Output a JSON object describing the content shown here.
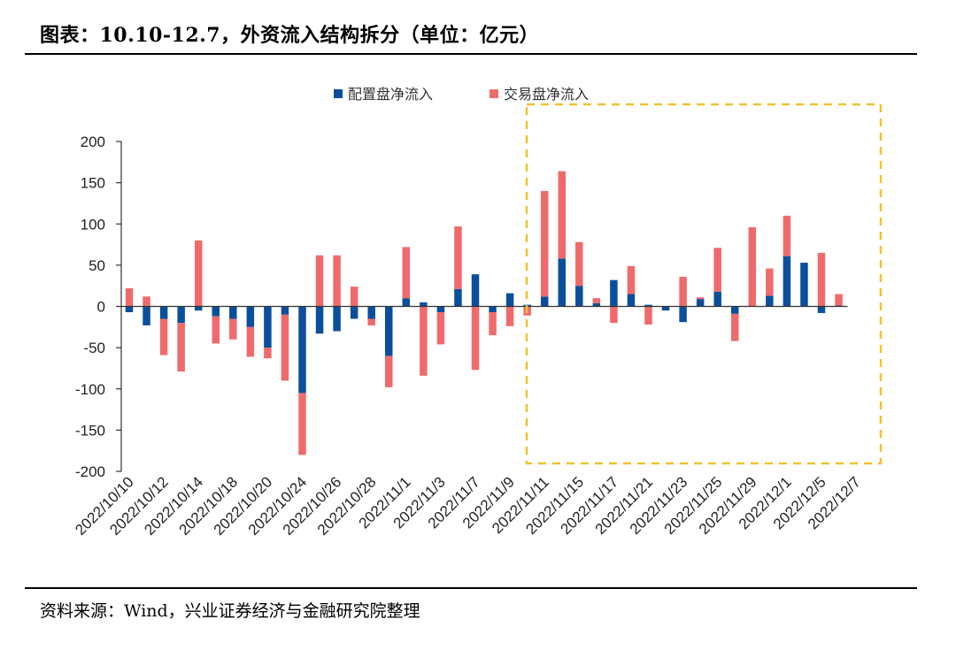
{
  "title": "图表：10.10-12.7，外资流入结构拆分（单位：亿元）",
  "source": "资料来源：Wind，兴业证券经济与金融研究院整理",
  "colors": {
    "allocation": "#0b4f9c",
    "trading": "#ef6b6b",
    "highlight": "#f2c12e"
  },
  "chart_data": {
    "type": "bar",
    "stacked": true,
    "legend_position": "top",
    "ylim": [
      -200,
      200
    ],
    "yticks": [
      200,
      150,
      100,
      50,
      0,
      -50,
      -100,
      -150,
      -200
    ],
    "xtick_labels": [
      "2022/10/10",
      "2022/10/12",
      "2022/10/14",
      "2022/10/18",
      "2022/10/20",
      "2022/10/24",
      "2022/10/26",
      "2022/10/28",
      "2022/11/1",
      "2022/11/3",
      "2022/11/7",
      "2022/11/9",
      "2022/11/11",
      "2022/11/15",
      "2022/11/17",
      "2022/11/21",
      "2022/11/23",
      "2022/11/25",
      "2022/11/29",
      "2022/12/1",
      "2022/12/5",
      "2022/12/7"
    ],
    "series": [
      {
        "name": "配置盘净流入",
        "values": [
          -7,
          -23,
          -15,
          -20,
          -5,
          -12,
          -15,
          -25,
          -50,
          -10,
          -105,
          -33,
          -30,
          -15,
          -15,
          -60,
          10,
          5,
          -7,
          21,
          39,
          -7,
          16,
          2,
          12,
          58,
          25,
          4,
          32,
          15,
          2,
          -5,
          -19,
          9,
          18,
          -9,
          0,
          13,
          61,
          53,
          -8,
          1
        ]
      },
      {
        "name": "交易盘净流入",
        "values": [
          22,
          12,
          -44,
          -59,
          80,
          -33,
          -25,
          -36,
          -13,
          -80,
          -75,
          62,
          62,
          24,
          -8,
          -38,
          62,
          -84,
          -39,
          76,
          -77,
          -28,
          -24,
          -11,
          128,
          106,
          53,
          6,
          -20,
          34,
          -22,
          0,
          36,
          2,
          53,
          -33,
          96,
          33,
          49,
          0,
          65,
          14
        ]
      }
    ]
  },
  "highlight_range": {
    "from": "2022/11/11",
    "to": "2022/12/7"
  }
}
